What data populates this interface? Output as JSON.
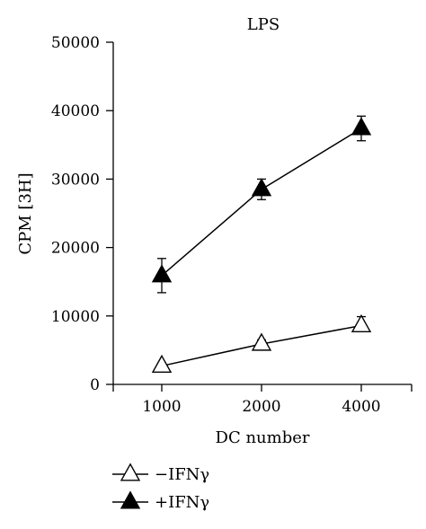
{
  "chart_data": {
    "type": "line",
    "title": "LPS",
    "xlabel": "DC number",
    "ylabel": "CPM [3H]",
    "categories": [
      "1000",
      "2000",
      "4000"
    ],
    "ylim": [
      0,
      50000
    ],
    "yticks": [
      0,
      10000,
      20000,
      30000,
      40000,
      50000
    ],
    "ytick_labels": [
      "0",
      "10000",
      "20000",
      "30000",
      "40000",
      "50000"
    ],
    "grid": false,
    "legend_position": "bottom-left",
    "series": [
      {
        "name": "−IFNγ",
        "marker": "triangle-open",
        "values": [
          2700,
          5900,
          8600
        ],
        "errors": [
          400,
          600,
          1300
        ]
      },
      {
        "name": "+IFNγ",
        "marker": "triangle-filled",
        "values": [
          15900,
          28500,
          37400
        ],
        "errors": [
          2500,
          1500,
          1800
        ]
      }
    ]
  }
}
